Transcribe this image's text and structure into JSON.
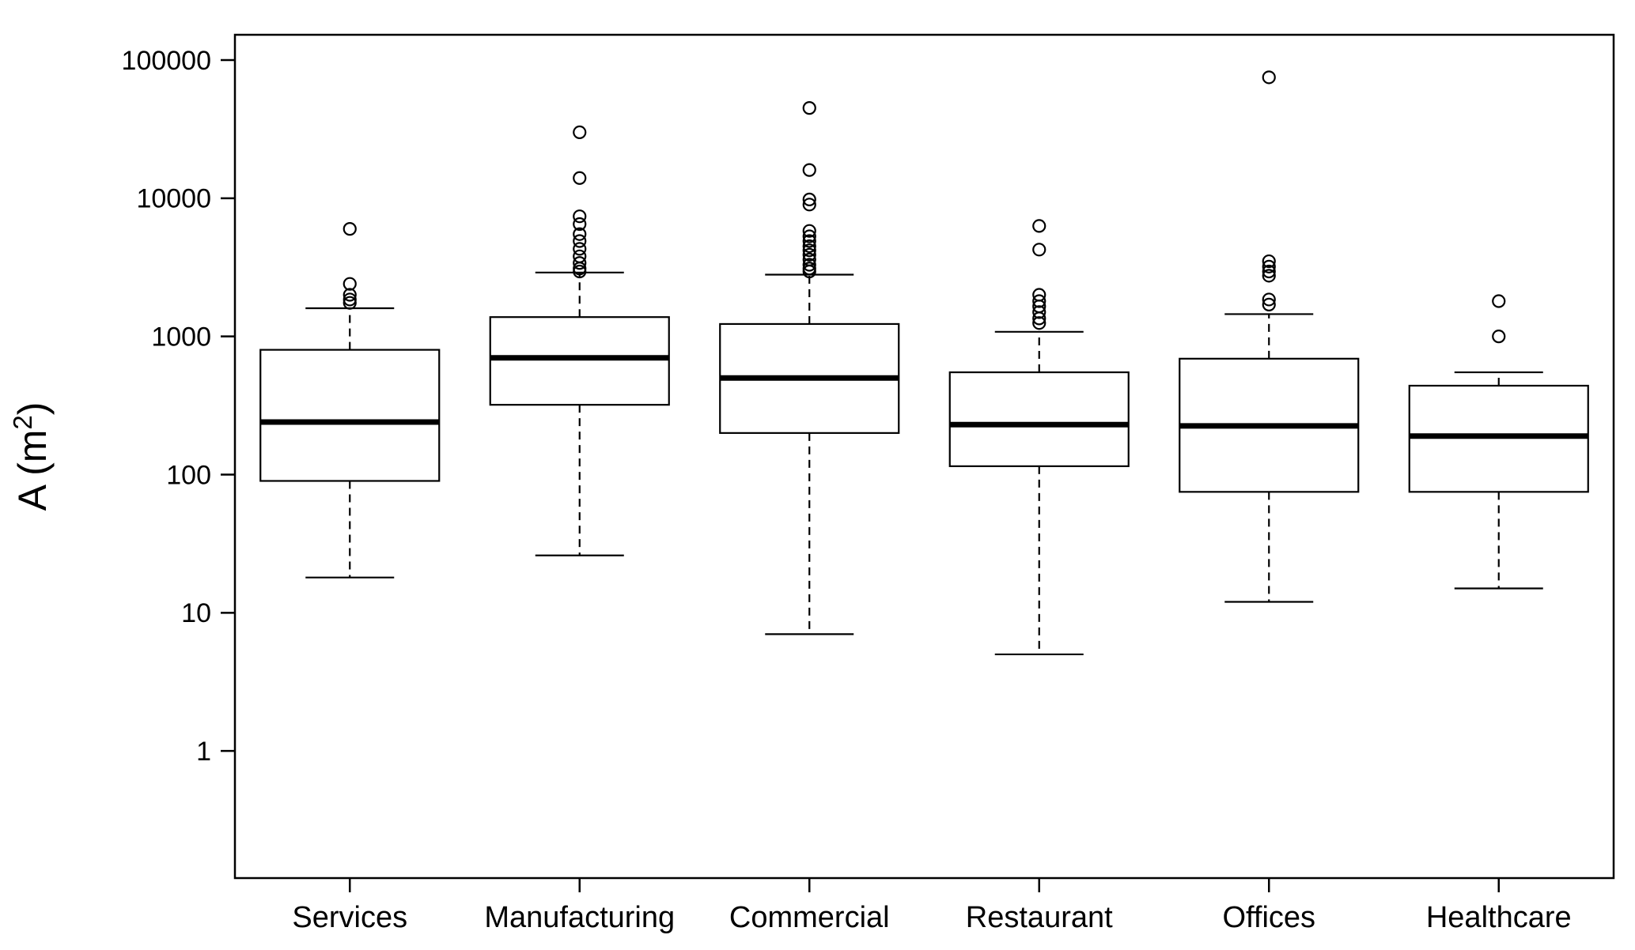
{
  "chart_data": {
    "type": "boxplot",
    "title": "",
    "xlabel": "",
    "ylabel": "A (m²)",
    "ylabel_parts": {
      "prefix": "A (m",
      "sup": "2",
      "suffix": ")"
    },
    "y_scale": "log10",
    "y_ticks": [
      1,
      10,
      100,
      1000,
      10000,
      100000
    ],
    "y_tick_labels": [
      "1",
      "10",
      "100",
      "1000",
      "10000",
      "100000"
    ],
    "y_range_exp": [
      -0.92,
      5.183
    ],
    "grid": false,
    "legend": "none",
    "categories": [
      "Services",
      "Manufacturing",
      "Commercial",
      "Restaurant",
      "Offices",
      "Healthcare"
    ],
    "boxes": [
      {
        "category": "Services",
        "whisker_low": 18,
        "q1": 90,
        "median": 240,
        "q3": 800,
        "whisker_high": 1600,
        "outliers": [
          1750,
          1850,
          2000,
          2400,
          6000
        ]
      },
      {
        "category": "Manufacturing",
        "whisker_low": 26,
        "q1": 320,
        "median": 700,
        "q3": 1380,
        "whisker_high": 2900,
        "outliers": [
          2950,
          3100,
          3400,
          3800,
          4300,
          4900,
          5500,
          6500,
          7400,
          14000,
          30000
        ]
      },
      {
        "category": "Commercial",
        "whisker_low": 7,
        "q1": 200,
        "median": 500,
        "q3": 1230,
        "whisker_high": 2800,
        "outliers": [
          2950,
          3100,
          3300,
          3600,
          3900,
          4200,
          4500,
          4900,
          5300,
          5800,
          9000,
          9800,
          16000,
          45000
        ]
      },
      {
        "category": "Restaurant",
        "whisker_low": 5,
        "q1": 115,
        "median": 230,
        "q3": 550,
        "whisker_high": 1080,
        "outliers": [
          1250,
          1350,
          1500,
          1650,
          1800,
          2000,
          4250,
          6300
        ]
      },
      {
        "category": "Offices",
        "whisker_low": 12,
        "q1": 75,
        "median": 225,
        "q3": 690,
        "whisker_high": 1450,
        "outliers": [
          1700,
          1850,
          2750,
          2950,
          3200,
          3500,
          75000
        ]
      },
      {
        "category": "Healthcare",
        "whisker_low": 15,
        "q1": 75,
        "median": 190,
        "q3": 440,
        "whisker_high": 550,
        "outliers": [
          1000,
          1800
        ]
      }
    ]
  },
  "styles": {
    "background": "#ffffff",
    "stroke": "#000000",
    "box_fill": "#ffffff"
  }
}
